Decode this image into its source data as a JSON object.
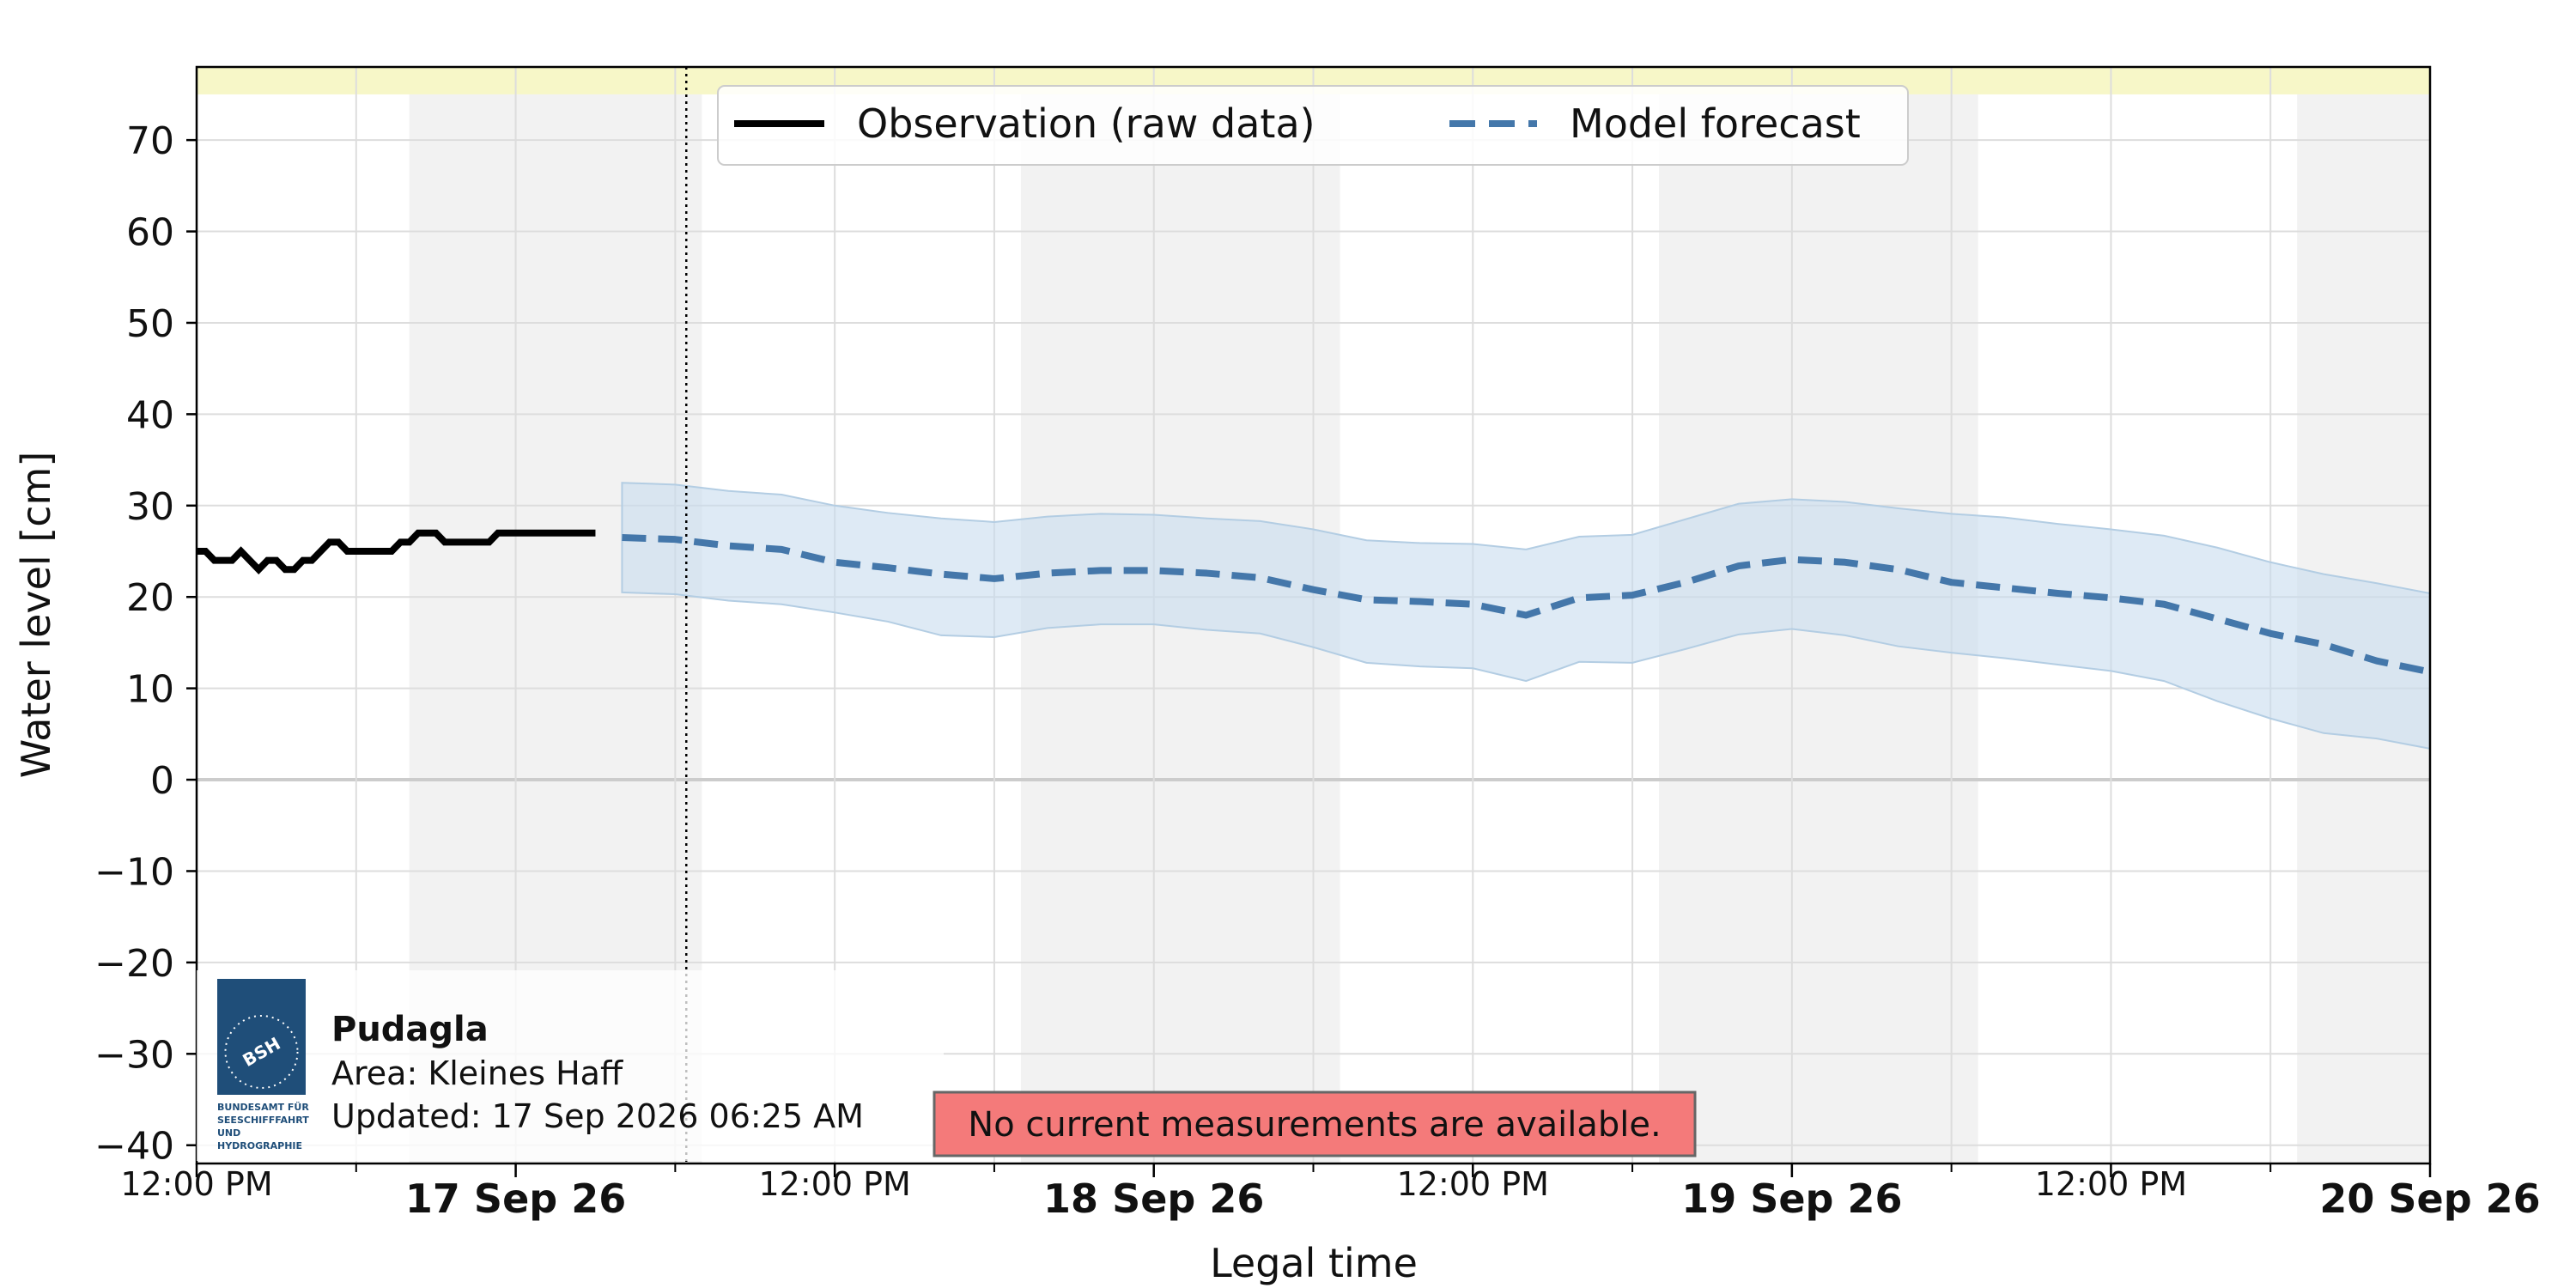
{
  "chart_data": {
    "type": "line",
    "ylabel": "Water level [cm]",
    "xlabel": "Legal time",
    "ylim": [
      -42,
      78
    ],
    "xlim": [
      "2026-09-16T12:00",
      "2026-09-20T00:00"
    ],
    "yticks": [
      70,
      60,
      50,
      40,
      30,
      20,
      10,
      0,
      -10,
      -20,
      -30,
      -40
    ],
    "ytick_labels": [
      "70",
      "60",
      "50",
      "40",
      "30",
      "20",
      "10",
      "0",
      "−10",
      "−20",
      "−30",
      "−40"
    ],
    "xticks": [
      {
        "t": "2026-09-16T12:00",
        "label": "12:00 PM",
        "major": false
      },
      {
        "t": "2026-09-17T00:00",
        "label": "17 Sep 26",
        "major": true
      },
      {
        "t": "2026-09-17T12:00",
        "label": "12:00 PM",
        "major": false
      },
      {
        "t": "2026-09-18T00:00",
        "label": "18 Sep 26",
        "major": true
      },
      {
        "t": "2026-09-18T12:00",
        "label": "12:00 PM",
        "major": false
      },
      {
        "t": "2026-09-19T00:00",
        "label": "19 Sep 26",
        "major": true
      },
      {
        "t": "2026-09-19T12:00",
        "label": "12:00 PM",
        "major": false
      },
      {
        "t": "2026-09-20T00:00",
        "label": "20 Sep 26",
        "major": true
      }
    ],
    "grid": true,
    "legend_placement": "top-center",
    "now_marker": "2026-09-17T06:25",
    "night_shading": [
      [
        "2026-09-16T20:00",
        "2026-09-17T07:00"
      ],
      [
        "2026-09-17T19:00",
        "2026-09-18T07:00"
      ],
      [
        "2026-09-18T19:00",
        "2026-09-19T07:00"
      ],
      [
        "2026-09-19T19:00",
        "2026-09-20T00:00"
      ]
    ],
    "top_band": {
      "from": 75,
      "to": 78,
      "color": "#f7f7c8"
    },
    "series": [
      {
        "name": "Observation (raw data)",
        "style": "solid",
        "color": "#000000",
        "points": [
          [
            "2026-09-16T12:00",
            25
          ],
          [
            "2026-09-16T12:20",
            25
          ],
          [
            "2026-09-16T12:40",
            24
          ],
          [
            "2026-09-16T13:20",
            24
          ],
          [
            "2026-09-16T13:40",
            25
          ],
          [
            "2026-09-16T14:00",
            24
          ],
          [
            "2026-09-16T14:20",
            23
          ],
          [
            "2026-09-16T14:40",
            24
          ],
          [
            "2026-09-16T15:00",
            24
          ],
          [
            "2026-09-16T15:20",
            23
          ],
          [
            "2026-09-16T15:40",
            23
          ],
          [
            "2026-09-16T16:00",
            24
          ],
          [
            "2026-09-16T16:20",
            24
          ],
          [
            "2026-09-16T16:40",
            25
          ],
          [
            "2026-09-16T17:00",
            26
          ],
          [
            "2026-09-16T17:20",
            26
          ],
          [
            "2026-09-16T17:40",
            25
          ],
          [
            "2026-09-16T19:20",
            25
          ],
          [
            "2026-09-16T19:40",
            26
          ],
          [
            "2026-09-16T20:00",
            26
          ],
          [
            "2026-09-16T20:20",
            27
          ],
          [
            "2026-09-16T21:00",
            27
          ],
          [
            "2026-09-16T21:20",
            26
          ],
          [
            "2026-09-16T23:00",
            26
          ],
          [
            "2026-09-16T23:20",
            27
          ],
          [
            "2026-09-17T03:00",
            27
          ]
        ]
      },
      {
        "name": "Model forecast",
        "style": "dashed",
        "color": "#4477aa",
        "points": [
          [
            "2026-09-17T04:00",
            26.5
          ],
          [
            "2026-09-17T06:00",
            26.3
          ],
          [
            "2026-09-17T08:00",
            25.6
          ],
          [
            "2026-09-17T10:00",
            25.2
          ],
          [
            "2026-09-17T12:00",
            23.8
          ],
          [
            "2026-09-17T14:00",
            23.2
          ],
          [
            "2026-09-17T16:00",
            22.5
          ],
          [
            "2026-09-17T18:00",
            22.0
          ],
          [
            "2026-09-17T20:00",
            22.6
          ],
          [
            "2026-09-17T22:00",
            22.9
          ],
          [
            "2026-09-18T00:00",
            22.9
          ],
          [
            "2026-09-18T02:00",
            22.6
          ],
          [
            "2026-09-18T04:00",
            22.1
          ],
          [
            "2026-09-18T06:00",
            20.8
          ],
          [
            "2026-09-18T08:00",
            19.7
          ],
          [
            "2026-09-18T10:00",
            19.5
          ],
          [
            "2026-09-18T12:00",
            19.2
          ],
          [
            "2026-09-18T14:00",
            18.0
          ],
          [
            "2026-09-18T16:00",
            19.9
          ],
          [
            "2026-09-18T18:00",
            20.2
          ],
          [
            "2026-09-18T20:00",
            21.6
          ],
          [
            "2026-09-18T22:00",
            23.4
          ],
          [
            "2026-09-19T00:00",
            24.1
          ],
          [
            "2026-09-19T02:00",
            23.8
          ],
          [
            "2026-09-19T04:00",
            23.0
          ],
          [
            "2026-09-19T06:00",
            21.6
          ],
          [
            "2026-09-19T08:00",
            21.0
          ],
          [
            "2026-09-19T10:00",
            20.4
          ],
          [
            "2026-09-19T12:00",
            19.9
          ],
          [
            "2026-09-19T14:00",
            19.2
          ],
          [
            "2026-09-19T16:00",
            17.6
          ],
          [
            "2026-09-19T18:00",
            16.0
          ],
          [
            "2026-09-19T20:00",
            14.8
          ],
          [
            "2026-09-19T22:00",
            13.0
          ],
          [
            "2026-09-20T00:00",
            11.8
          ]
        ],
        "band": {
          "color": "#c8dcee",
          "lower": [
            20.5,
            20.3,
            19.6,
            19.2,
            18.3,
            17.3,
            15.8,
            15.6,
            16.6,
            17.0,
            17.0,
            16.4,
            16.0,
            14.5,
            12.8,
            12.4,
            12.2,
            10.8,
            12.9,
            12.8,
            14.3,
            15.9,
            16.5,
            15.8,
            14.6,
            13.9,
            13.3,
            12.6,
            11.9,
            10.8,
            8.6,
            6.7,
            5.1,
            4.5,
            3.4
          ],
          "upper": [
            32.5,
            32.3,
            31.6,
            31.2,
            30.0,
            29.2,
            28.6,
            28.2,
            28.8,
            29.1,
            29.0,
            28.6,
            28.3,
            27.4,
            26.2,
            25.9,
            25.8,
            25.2,
            26.6,
            26.8,
            28.5,
            30.2,
            30.7,
            30.4,
            29.7,
            29.1,
            28.7,
            28.0,
            27.4,
            26.7,
            25.4,
            23.8,
            22.5,
            21.5,
            20.4
          ]
        }
      }
    ]
  },
  "legend": {
    "observation_label": "Observation (raw data)",
    "forecast_label": "Model forecast"
  },
  "station": {
    "name": "Pudagla",
    "area": "Area: Kleines Haff",
    "updated": "Updated: 17 Sep 2026 06:25 AM"
  },
  "logo": {
    "monogram": "BSH",
    "lines": [
      "BUNDESAMT FÜR",
      "SEESCHIFFFAHRT",
      "UND",
      "HYDROGRAPHIE"
    ],
    "color": "#1f4e79"
  },
  "warning": {
    "text": "No current measurements are available.",
    "color": "#f47a7a"
  },
  "colors": {
    "night": "#f2f2f2",
    "grid": "#dddddd",
    "zero_line": "#cccccc"
  }
}
